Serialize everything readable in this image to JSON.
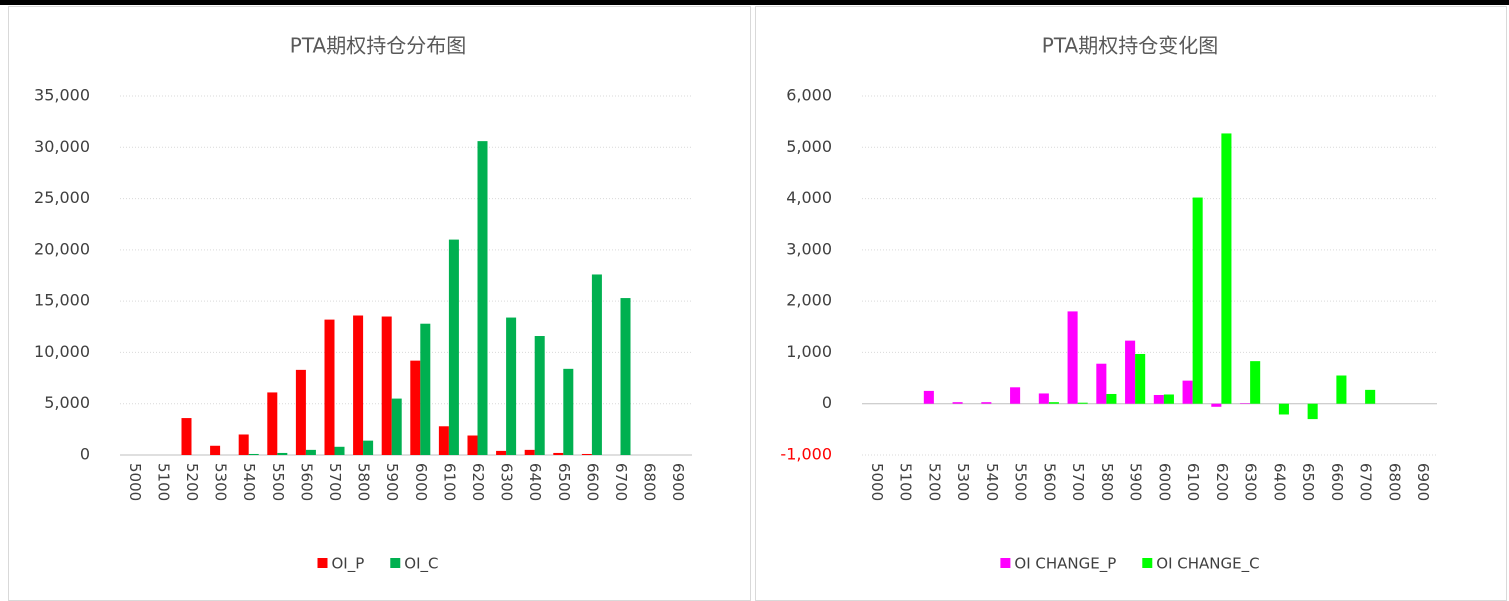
{
  "chart_data": [
    {
      "type": "bar",
      "title": "PTA期权持仓分布图",
      "categories": [
        "5000",
        "5100",
        "5200",
        "5300",
        "5400",
        "5500",
        "5600",
        "5700",
        "5800",
        "5900",
        "6000",
        "6100",
        "6200",
        "6300",
        "6400",
        "6500",
        "6600",
        "6700",
        "6800",
        "6900"
      ],
      "series": [
        {
          "name": "OI_P",
          "color": "#ff0000",
          "values": [
            0,
            0,
            3600,
            900,
            2000,
            6100,
            8300,
            13200,
            13600,
            13500,
            9200,
            2800,
            1900,
            400,
            500,
            200,
            100,
            0,
            0,
            0
          ]
        },
        {
          "name": "OI_C",
          "color": "#00b050",
          "values": [
            0,
            0,
            0,
            0,
            100,
            200,
            500,
            800,
            1400,
            5500,
            12800,
            21000,
            30600,
            13400,
            11600,
            8400,
            17600,
            15300,
            0,
            0
          ]
        }
      ],
      "ylim": [
        0,
        35000
      ],
      "yticks": [
        0,
        {
          "value": 5000,
          "label": "5,000"
        },
        {
          "value": 10000,
          "label": "10,000"
        },
        {
          "value": 15000,
          "label": "15,000"
        },
        {
          "value": 20000,
          "label": "20,000"
        },
        {
          "value": 25000,
          "label": "25,000"
        },
        {
          "value": 30000,
          "label": "30,000"
        },
        {
          "value": 35000,
          "label": "35,000"
        }
      ],
      "grid": true,
      "legend": "bottom"
    },
    {
      "type": "bar",
      "title": "PTA期权持仓变化图",
      "categories": [
        "5000",
        "5100",
        "5200",
        "5300",
        "5400",
        "5500",
        "5600",
        "5700",
        "5800",
        "5900",
        "6000",
        "6100",
        "6200",
        "6300",
        "6400",
        "6500",
        "6600",
        "6700",
        "6800",
        "6900"
      ],
      "series": [
        {
          "name": "OI CHANGE_P",
          "color": "#ff00ff",
          "values": [
            0,
            0,
            250,
            30,
            30,
            320,
            200,
            1800,
            780,
            1230,
            170,
            450,
            -60,
            10,
            0,
            0,
            0,
            0,
            0,
            0
          ]
        },
        {
          "name": "OI CHANGE_C",
          "color": "#00ff00",
          "values": [
            0,
            0,
            0,
            0,
            0,
            0,
            30,
            20,
            190,
            970,
            180,
            4020,
            5270,
            830,
            -210,
            -300,
            550,
            270,
            0,
            0
          ]
        }
      ],
      "ylim": [
        -1000,
        6000
      ],
      "yticks": [
        {
          "value": -1000,
          "label": "-1,000"
        },
        0,
        {
          "value": 1000,
          "label": "1,000"
        },
        {
          "value": 2000,
          "label": "2,000"
        },
        {
          "value": 3000,
          "label": "3,000"
        },
        {
          "value": 4000,
          "label": "4,000"
        },
        {
          "value": 5000,
          "label": "5,000"
        },
        {
          "value": 6000,
          "label": "6,000"
        }
      ],
      "negative_tick_color": "#ff0000",
      "grid": true,
      "legend": "bottom"
    }
  ]
}
